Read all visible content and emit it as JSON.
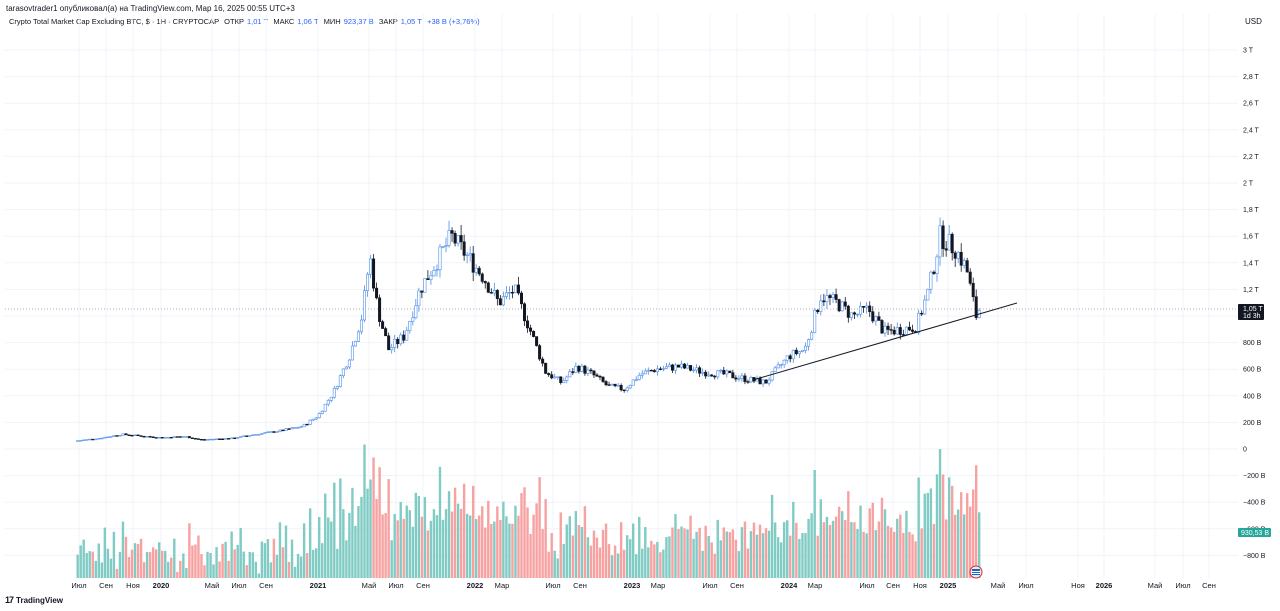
{
  "header": {
    "published": "tarasovtrader1 опубликовал(а) на TradingView.com, Мар 16, 2025 00:55 UTC+3"
  },
  "legend": {
    "symbol": "Crypto Total Market Cap Excluding BTC, $ · 1Н · CRYPTOCAP",
    "open_label": "ОТКР",
    "open_value": "1,01 T",
    "high_label": "МАКС",
    "high_value": "1,06 T",
    "low_label": "МИН",
    "low_value": "923,37 B",
    "close_label": "ЗАКР",
    "close_value": "1,05 T",
    "change": "+38 B (+3,76%)"
  },
  "currency_label": "USD",
  "footer": {
    "brand": "TradingView",
    "logo_glyph": "17"
  },
  "colors": {
    "up": "#4e8fe8",
    "down": "#131722",
    "vol_up": "#80cbc4",
    "vol_down": "#f7a1a1",
    "price_tag": "#131722",
    "osc_tag": "#26a69a",
    "trendline": "#131722"
  },
  "price_tag": {
    "value": "1,05 T",
    "countdown": "1d 3h"
  },
  "osc_tag": {
    "value": "930,53 B"
  },
  "chart_data": {
    "type": "candlestick",
    "timeframe": "weekly",
    "y_axis_ticks": [
      "3 T",
      "2,8 T",
      "2,6 T",
      "2,4 T",
      "2,2 T",
      "2 T",
      "1,8 T",
      "1,6 T",
      "1,4 T",
      "1,2 T",
      "1 T",
      "800 B",
      "600 B",
      "400 B",
      "200 B",
      "0",
      "−200 B",
      "−400 B",
      "−600 B",
      "−800 B"
    ],
    "y_axis_tick_values": [
      3000,
      2800,
      2600,
      2400,
      2200,
      2000,
      1800,
      1600,
      1400,
      1200,
      1000,
      800,
      600,
      400,
      200,
      0,
      -200,
      -400,
      -600,
      -800
    ],
    "x_axis_ticks": [
      {
        "label": "Июл",
        "year": false
      },
      {
        "label": "Сен",
        "year": false
      },
      {
        "label": "Ноя",
        "year": false
      },
      {
        "label": "2020",
        "year": true
      },
      {
        "label": "Май",
        "year": false
      },
      {
        "label": "Июл",
        "year": false
      },
      {
        "label": "Сен",
        "year": false
      },
      {
        "label": "2021",
        "year": true
      },
      {
        "label": "Май",
        "year": false
      },
      {
        "label": "Июл",
        "year": false
      },
      {
        "label": "Сен",
        "year": false
      },
      {
        "label": "2022",
        "year": true
      },
      {
        "label": "Мар",
        "year": false
      },
      {
        "label": "Июл",
        "year": false
      },
      {
        "label": "Сен",
        "year": false
      },
      {
        "label": "2023",
        "year": true
      },
      {
        "label": "Мар",
        "year": false
      },
      {
        "label": "Июл",
        "year": false
      },
      {
        "label": "Сен",
        "year": false
      },
      {
        "label": "2024",
        "year": true
      },
      {
        "label": "Мар",
        "year": false
      },
      {
        "label": "Июл",
        "year": false
      },
      {
        "label": "Сен",
        "year": false
      },
      {
        "label": "Ноя",
        "year": false
      },
      {
        "label": "2025",
        "year": true
      },
      {
        "label": "Май",
        "year": false
      },
      {
        "label": "Июл",
        "year": false
      },
      {
        "label": "Ноя",
        "year": false
      },
      {
        "label": "2026",
        "year": true
      },
      {
        "label": "Май",
        "year": false
      },
      {
        "label": "Июл",
        "year": false
      },
      {
        "label": "Сен",
        "year": false
      }
    ],
    "price_keypoints_billion": [
      [
        2019.45,
        60
      ],
      [
        2019.6,
        80
      ],
      [
        2019.75,
        110
      ],
      [
        2019.9,
        95
      ],
      [
        2020.0,
        85
      ],
      [
        2020.15,
        95
      ],
      [
        2020.25,
        70
      ],
      [
        2020.45,
        80
      ],
      [
        2020.6,
        110
      ],
      [
        2020.75,
        135
      ],
      [
        2020.9,
        170
      ],
      [
        2021.0,
        250
      ],
      [
        2021.1,
        430
      ],
      [
        2021.2,
        700
      ],
      [
        2021.28,
        1000
      ],
      [
        2021.33,
        1450
      ],
      [
        2021.38,
        1050
      ],
      [
        2021.45,
        750
      ],
      [
        2021.55,
        850
      ],
      [
        2021.65,
        1200
      ],
      [
        2021.75,
        1400
      ],
      [
        2021.85,
        1600
      ],
      [
        2021.95,
        1450
      ],
      [
        2022.05,
        1300
      ],
      [
        2022.15,
        1100
      ],
      [
        2022.25,
        1200
      ],
      [
        2022.35,
        900
      ],
      [
        2022.45,
        580
      ],
      [
        2022.55,
        500
      ],
      [
        2022.65,
        620
      ],
      [
        2022.75,
        560
      ],
      [
        2022.85,
        470
      ],
      [
        2022.95,
        450
      ],
      [
        2023.05,
        560
      ],
      [
        2023.15,
        600
      ],
      [
        2023.3,
        620
      ],
      [
        2023.45,
        580
      ],
      [
        2023.6,
        560
      ],
      [
        2023.75,
        520
      ],
      [
        2023.85,
        500
      ],
      [
        2024.0,
        700
      ],
      [
        2024.1,
        750
      ],
      [
        2024.2,
        1150
      ],
      [
        2024.3,
        1100
      ],
      [
        2024.4,
        1000
      ],
      [
        2024.5,
        1050
      ],
      [
        2024.6,
        880
      ],
      [
        2024.7,
        900
      ],
      [
        2024.8,
        920
      ],
      [
        2024.88,
        1200
      ],
      [
        2024.95,
        1600
      ],
      [
        2025.05,
        1500
      ],
      [
        2025.12,
        1350
      ],
      [
        2025.18,
        1000
      ],
      [
        2025.2,
        1050
      ]
    ],
    "volume_series": "volume histogram, peaks near 2021 May (~80), 2021 Nov (~50), 2024 Mar (~35), 2024 Dec (~85)"
  }
}
